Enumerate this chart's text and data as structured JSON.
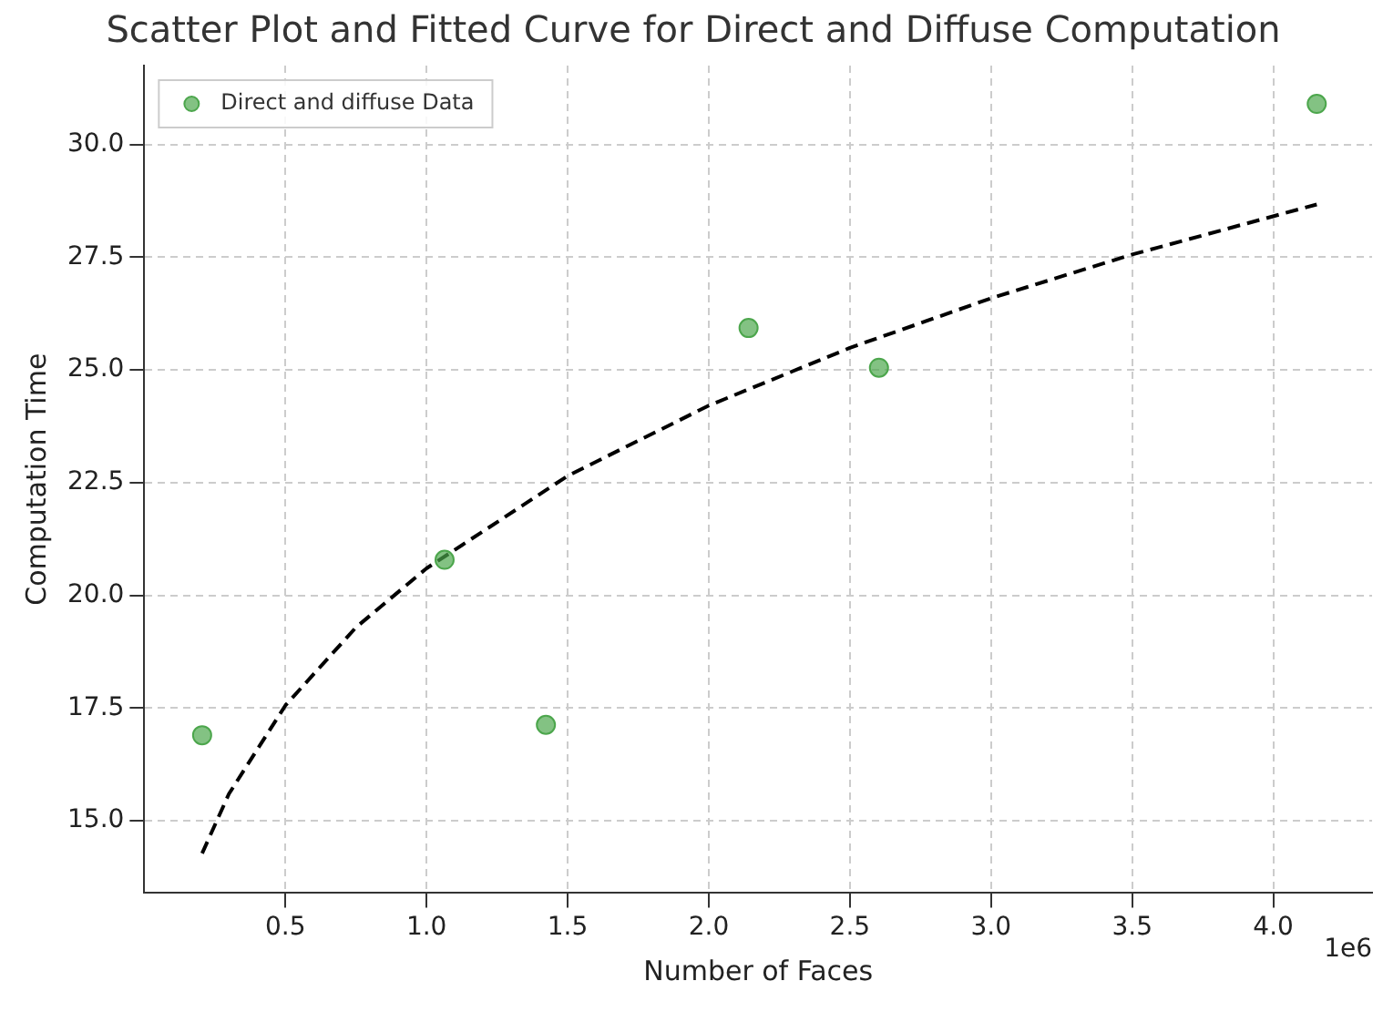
{
  "chart_data": {
    "type": "scatter",
    "title": "Scatter Plot and Fitted Curve for Direct and Diffuse Computation",
    "xlabel": "Number of Faces",
    "ylabel": "Computation Time",
    "series": [
      {
        "name": "Direct and diffuse Data",
        "type": "scatter",
        "color": "#4ca64c",
        "marker": "circle",
        "x": [
          0.205,
          1.064,
          1.423,
          2.141,
          2.603,
          4.154
        ],
        "values": [
          16.9,
          20.79,
          17.13,
          25.93,
          25.05,
          30.9
        ]
      },
      {
        "type": "line",
        "color": "#000000",
        "marker": "none",
        "line_style": "dashed",
        "x": [
          0.205,
          0.3,
          0.5,
          0.75,
          1.0,
          1.5,
          2.0,
          2.5,
          3.0,
          3.5,
          4.154
        ],
        "values": [
          14.28,
          15.6,
          17.56,
          19.29,
          20.6,
          22.65,
          24.21,
          25.49,
          26.59,
          27.56,
          28.67
        ]
      }
    ],
    "xlim": [
      0,
      4.35
    ],
    "xticks": [
      0.5,
      {
        "value": 1,
        "label": "1.0"
      },
      1.5,
      {
        "value": 2,
        "label": "2.0"
      },
      2.5,
      {
        "value": 3,
        "label": "3.0"
      },
      3.5,
      {
        "value": 4,
        "label": "4.0"
      }
    ],
    "ylim": [
      13.4,
      31.75
    ],
    "yticks": [
      {
        "value": 15,
        "label": "15.0"
      },
      17.5,
      {
        "value": 20,
        "label": "20.0"
      },
      22.5,
      {
        "value": 25,
        "label": "25.0"
      },
      27.5,
      {
        "value": 30,
        "label": "30.0"
      }
    ],
    "grid": true,
    "legend": "top left",
    "annotations": [
      "1e6"
    ]
  }
}
